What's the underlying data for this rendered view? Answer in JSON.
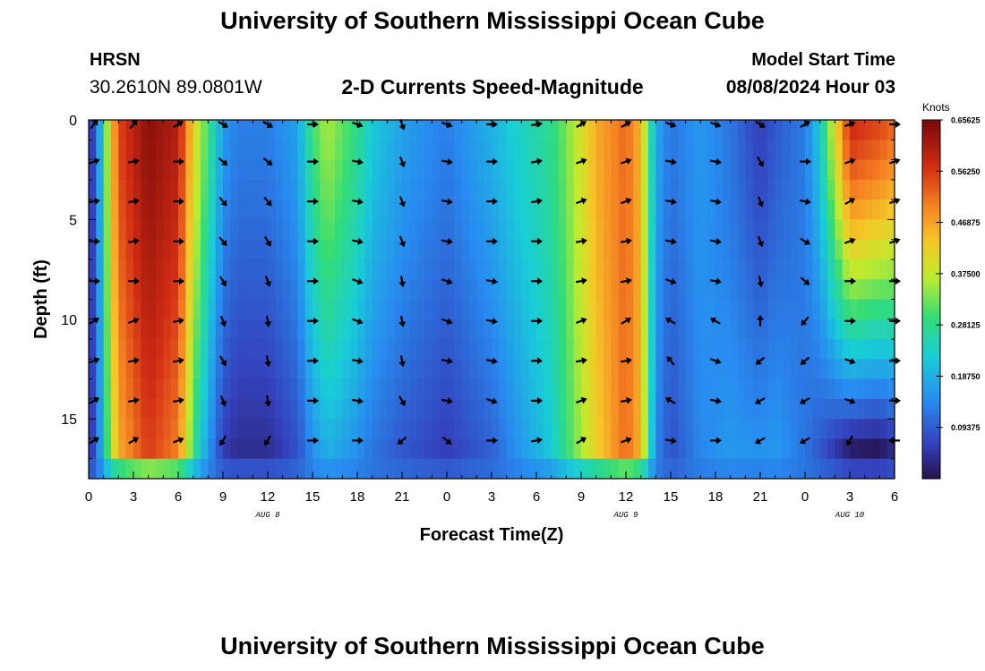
{
  "header": {
    "title": "University of Southern Mississippi Ocean Cube",
    "station": "HRSN",
    "coordinates": "30.2610N  89.0801W",
    "subtitle": "2-D Currents Speed-Magnitude",
    "model_start_label": "Model Start Time",
    "model_start_value": "08/08/2024 Hour 03"
  },
  "footer": {
    "title": "University of Southern Mississippi Ocean Cube"
  },
  "chart_data": {
    "type": "heatmap",
    "title": "2-D Currents Speed-Magnitude",
    "xlabel": "Forecast Time(Z)",
    "ylabel": "Depth (ft)",
    "xlim": [
      0,
      54
    ],
    "ylim": [
      0,
      18
    ],
    "x_ticks": [
      0,
      3,
      6,
      9,
      12,
      15,
      18,
      21,
      24,
      27,
      30,
      33,
      36,
      39,
      42,
      45,
      48,
      51,
      54
    ],
    "x_tick_labels": [
      "0",
      "3",
      "6",
      "9",
      "12",
      "15",
      "18",
      "21",
      "0",
      "3",
      "6",
      "9",
      "12",
      "15",
      "18",
      "21",
      "0",
      "3",
      "6"
    ],
    "y_ticks": [
      0,
      5,
      10,
      15
    ],
    "y_tick_labels": [
      "0",
      "5",
      "10",
      "15"
    ],
    "date_annotations": [
      {
        "hour": 12,
        "label": "AUG 8"
      },
      {
        "hour": 36,
        "label": "AUG 9"
      },
      {
        "hour": 51,
        "label": "AUG 10"
      }
    ],
    "colorbar": {
      "unit": "Knots",
      "min": 0.0,
      "max": 0.65625,
      "tick_values": [
        0.65625,
        0.5625,
        0.46875,
        0.375,
        0.28125,
        0.1875,
        0.09375
      ],
      "tick_labels": [
        "0.65625",
        "0.56250",
        "0.46875",
        "0.37500",
        "0.28125",
        "0.18750",
        "0.09375"
      ]
    },
    "speed_profile": {
      "hours": [
        0,
        0.5,
        1,
        2,
        4,
        6,
        7,
        8,
        9,
        10,
        12,
        14,
        15,
        16,
        18,
        19,
        21,
        24,
        27,
        29,
        31,
        32,
        34,
        36,
        37,
        38,
        39,
        41,
        43,
        45,
        46,
        48,
        49,
        51,
        53,
        54
      ],
      "surface_knots": [
        0.05,
        0.08,
        0.28,
        0.55,
        0.64,
        0.6,
        0.42,
        0.3,
        0.16,
        0.13,
        0.13,
        0.17,
        0.3,
        0.36,
        0.28,
        0.22,
        0.17,
        0.13,
        0.19,
        0.24,
        0.28,
        0.33,
        0.46,
        0.52,
        0.45,
        0.18,
        0.12,
        0.16,
        0.12,
        0.06,
        0.09,
        0.13,
        0.22,
        0.58,
        0.55,
        0.52
      ],
      "bottom_knots": [
        0.05,
        0.08,
        0.24,
        0.46,
        0.56,
        0.5,
        0.3,
        0.16,
        0.06,
        0.04,
        0.04,
        0.08,
        0.15,
        0.19,
        0.15,
        0.12,
        0.09,
        0.06,
        0.1,
        0.16,
        0.22,
        0.29,
        0.42,
        0.52,
        0.45,
        0.14,
        0.08,
        0.14,
        0.16,
        0.15,
        0.16,
        0.12,
        0.09,
        0.02,
        0.01,
        0.04
      ],
      "near_bottom_ft": 16.5,
      "bottom_layer_knots": 0.12
    },
    "vectors": {
      "hours": [
        0,
        3,
        6,
        9,
        12,
        15,
        18,
        21,
        24,
        27,
        30,
        33,
        36,
        39,
        42,
        45,
        48,
        51,
        54
      ],
      "depths_ft": [
        0,
        2,
        4,
        6,
        8,
        10,
        12,
        14,
        16
      ],
      "direction_deg": [
        [
          40,
          40,
          60,
          120,
          120,
          90,
          110,
          160,
          110,
          90,
          80,
          60,
          60,
          110,
          110,
          120,
          60,
          70,
          90
        ],
        [
          70,
          80,
          90,
          130,
          130,
          90,
          100,
          160,
          100,
          90,
          80,
          70,
          70,
          100,
          100,
          150,
          90,
          70,
          70
        ],
        [
          80,
          80,
          90,
          140,
          140,
          90,
          100,
          160,
          100,
          90,
          80,
          70,
          70,
          100,
          100,
          160,
          100,
          60,
          70
        ],
        [
          90,
          80,
          90,
          140,
          150,
          90,
          100,
          160,
          100,
          90,
          90,
          80,
          80,
          100,
          100,
          160,
          120,
          70,
          70
        ],
        [
          90,
          90,
          90,
          150,
          160,
          90,
          110,
          170,
          110,
          100,
          90,
          80,
          80,
          110,
          100,
          170,
          130,
          90,
          90
        ],
        [
          60,
          70,
          80,
          160,
          170,
          90,
          110,
          170,
          110,
          100,
          90,
          70,
          60,
          300,
          300,
          0,
          220,
          90,
          90
        ],
        [
          70,
          80,
          80,
          150,
          170,
          90,
          100,
          170,
          100,
          100,
          90,
          80,
          80,
          320,
          110,
          230,
          230,
          110,
          90
        ],
        [
          60,
          80,
          80,
          160,
          170,
          90,
          100,
          150,
          100,
          110,
          90,
          70,
          80,
          300,
          100,
          240,
          240,
          110,
          90
        ],
        [
          60,
          60,
          70,
          210,
          210,
          90,
          90,
          230,
          130,
          90,
          80,
          60,
          70,
          100,
          90,
          240,
          240,
          210,
          270
        ]
      ]
    }
  }
}
